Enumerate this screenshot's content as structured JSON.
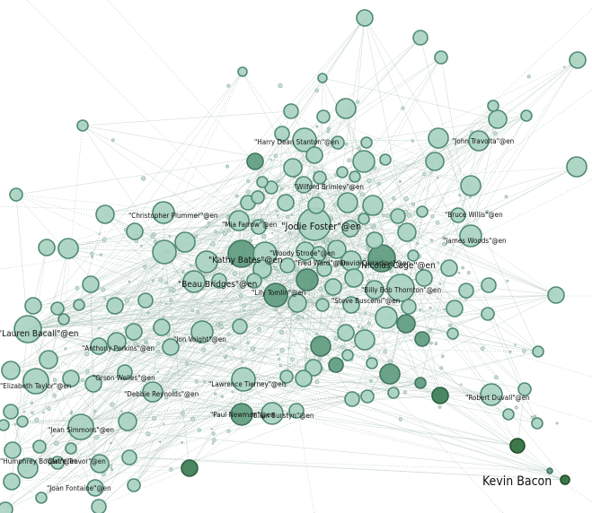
{
  "graph": {
    "labels": [
      "\"Harry Dean Stanton\"@en",
      "\"John Travolta\"@en",
      "\"Wilford Brimley\"@en",
      "\"Christopher Plummer\"@en",
      "\"Mia Farrow\"@en",
      "\"Jodie Foster\"@en",
      "\"Bruce Willis\"@en",
      "\"James Woods\"@en",
      "\"Woody Strode\"@en",
      "\"Fred Ward\"@en",
      "\"David Carradine\"@en",
      "\"Kathy Bates\"@en",
      "\"Nicolas Cage\"@en",
      "\"Beau Bridges\"@en",
      "\"Billy Bob Thornton\"@en",
      "\"Lily Tomlin\"@en",
      "\"Steve Buscemi\"@en",
      "\"Lauren Bacall\"@en",
      "\"Anthony Perkins\"@en",
      "\"Jon Voight\"@en",
      "\"Elizabeth Taylor\"@en",
      "\"Orson Welles\"@en",
      "\"Debbie Reynolds\"@en",
      "\"Lawrence Tierney\"@en",
      "\"Robert Duvall\"@en",
      "\"Paul Newman\"@en",
      "\"Ellen Burstyn\"@en",
      "\"Jean Simmons\"@en",
      "\"Humphrey Bogart\"@en",
      "\"Claire Trevor\"@en",
      "\"Joan Fontaine\"@en",
      "Kevin Bacon"
    ],
    "colors": {
      "node_fill": "#a9d3c1",
      "node_stroke": "#4f8a73",
      "node_dark_fill": "#5f9c7f",
      "node_darker_fill": "#3c7d56",
      "kevin_bacon_fill": "#2e6e3c"
    }
  }
}
